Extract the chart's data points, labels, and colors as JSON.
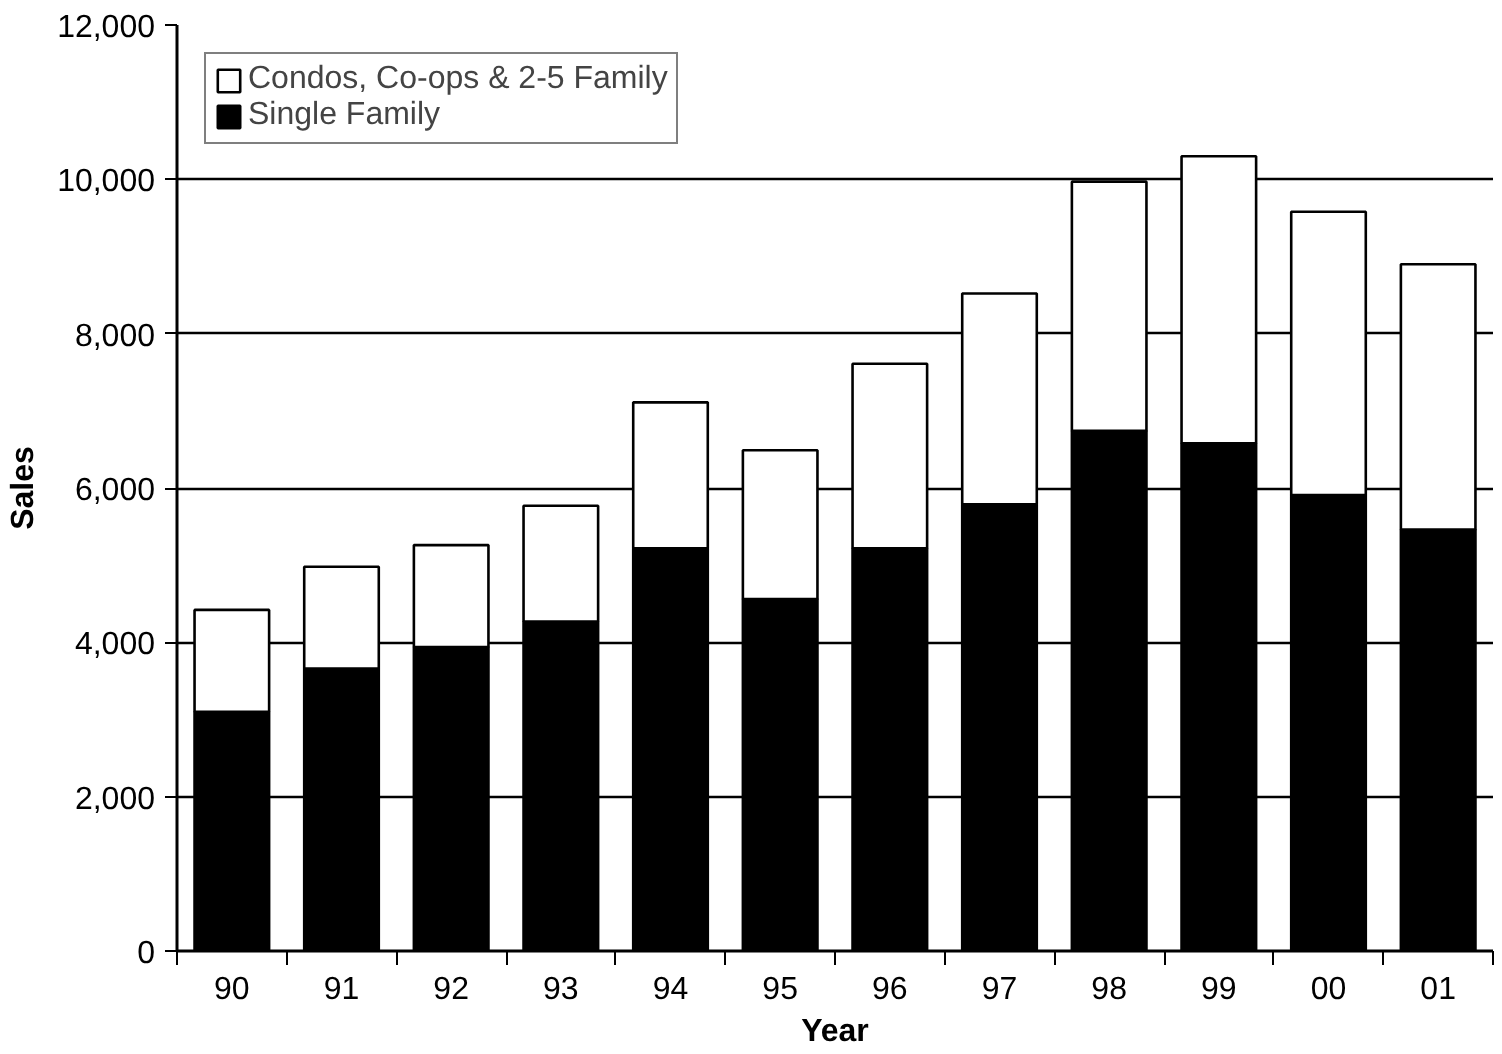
{
  "chart_data": {
    "type": "bar",
    "xlabel": "Year",
    "ylabel": "Sales",
    "categories": [
      "90",
      "91",
      "92",
      "93",
      "94",
      "95",
      "96",
      "97",
      "98",
      "99",
      "00",
      "01"
    ],
    "stacked": true,
    "series": [
      {
        "name": "Single Family",
        "color": "#000000",
        "values": [
          3100,
          3660,
          3940,
          4270,
          5220,
          4560,
          5220,
          5790,
          6740,
          6580,
          5910,
          5460
        ]
      },
      {
        "name": "Condos, Co-ops & 2-5 Family",
        "color": "#ffffff",
        "values": [
          1320,
          1320,
          1320,
          1500,
          1890,
          1930,
          2390,
          2730,
          3230,
          3720,
          3670,
          3440
        ]
      }
    ],
    "ylim": [
      0,
      12000
    ],
    "yticks": [
      0,
      {
        "value": 2000,
        "label": "2,000"
      },
      {
        "value": 4000,
        "label": "4,000"
      },
      {
        "value": 6000,
        "label": "6,000"
      },
      {
        "value": 8000,
        "label": "8,000"
      },
      {
        "value": 10000,
        "label": "10,000"
      },
      {
        "value": 12000,
        "label": "12,000"
      }
    ],
    "grid": "y",
    "legend": "top left"
  }
}
